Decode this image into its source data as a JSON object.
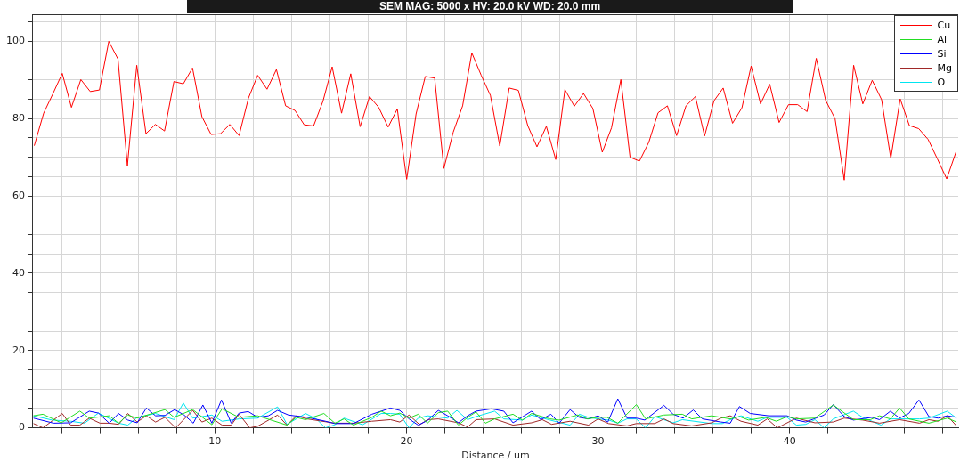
{
  "chart_data": {
    "type": "line",
    "xlabel": "Distance / um",
    "annotations": [
      "SEM MAG: 5000 x HV: 20.0 kV WD: 20.0 mm"
    ],
    "xlim": [
      0.5,
      48.8
    ],
    "ylim": [
      0,
      107
    ],
    "xticks": [
      {
        "value": 2,
        "label": null
      },
      {
        "value": 4,
        "label": null
      },
      {
        "value": 6,
        "label": null
      },
      {
        "value": 8,
        "label": null
      },
      10,
      {
        "value": 12,
        "label": null
      },
      {
        "value": 14,
        "label": null
      },
      {
        "value": 16,
        "label": null
      },
      {
        "value": 18,
        "label": null
      },
      20,
      {
        "value": 22,
        "label": null
      },
      {
        "value": 24,
        "label": null
      },
      {
        "value": 26,
        "label": null
      },
      {
        "value": 28,
        "label": null
      },
      30,
      {
        "value": 32,
        "label": null
      },
      {
        "value": 34,
        "label": null
      },
      {
        "value": 36,
        "label": null
      },
      {
        "value": 38,
        "label": null
      },
      40,
      {
        "value": 42,
        "label": null
      },
      {
        "value": 44,
        "label": null
      },
      {
        "value": 46,
        "label": null
      },
      {
        "value": 48,
        "label": null
      }
    ],
    "yticks": [
      0,
      {
        "value": 5,
        "label": null
      },
      {
        "value": 10,
        "label": null
      },
      {
        "value": 15,
        "label": null
      },
      20,
      {
        "value": 25,
        "label": null
      },
      {
        "value": 30,
        "label": null
      },
      {
        "value": 35,
        "label": null
      },
      40,
      {
        "value": 45,
        "label": null
      },
      {
        "value": 50,
        "label": null
      },
      {
        "value": 55,
        "label": null
      },
      60,
      {
        "value": 65,
        "label": null
      },
      {
        "value": 70,
        "label": null
      },
      {
        "value": 75,
        "label": null
      },
      80,
      {
        "value": 85,
        "label": null
      },
      {
        "value": 90,
        "label": null
      },
      {
        "value": 95,
        "label": null
      },
      100,
      {
        "value": 105,
        "label": null
      }
    ],
    "grid": true,
    "legend": "top right",
    "marker": "none",
    "series": [
      {
        "name": "Cu",
        "color": "#ff0000",
        "x": [
          0.57,
          1.06,
          1.54,
          2.03,
          2.51,
          3.0,
          3.49,
          3.97,
          4.46,
          4.94,
          5.43,
          5.92,
          6.4,
          6.89,
          7.37,
          7.86,
          8.35,
          8.83,
          9.32,
          9.8,
          10.29,
          10.78,
          11.26,
          11.75,
          12.23,
          12.72,
          13.21,
          13.69,
          14.18,
          14.66,
          15.15,
          15.64,
          16.12,
          16.61,
          17.09,
          17.58,
          18.07,
          18.55,
          19.04,
          19.52,
          20.01,
          20.5,
          20.98,
          21.47,
          21.95,
          22.44,
          22.93,
          23.41,
          23.9,
          24.38,
          24.87,
          25.36,
          25.84,
          26.33,
          26.81,
          27.3,
          27.79,
          28.27,
          28.76,
          29.24,
          29.73,
          30.22,
          30.7,
          31.19,
          31.67,
          32.16,
          32.65,
          33.13,
          33.62,
          34.1,
          34.59,
          35.08,
          35.56,
          36.05,
          36.53,
          37.02,
          37.51,
          37.99,
          38.48,
          38.96,
          39.45,
          39.94,
          40.42,
          40.91,
          41.39,
          41.88,
          42.37,
          42.85,
          43.34,
          43.82,
          44.31,
          44.8,
          45.28,
          45.77,
          46.25,
          46.74,
          47.23,
          47.71,
          48.2,
          48.68
        ],
        "values": [
          73.0,
          81.4,
          86.4,
          91.7,
          82.9,
          90.1,
          87.0,
          87.4,
          100.0,
          95.4,
          67.8,
          93.8,
          76.1,
          78.5,
          76.8,
          89.6,
          89.0,
          93.1,
          80.5,
          75.9,
          76.1,
          78.5,
          75.6,
          85.3,
          91.2,
          87.6,
          92.7,
          83.3,
          82.1,
          78.4,
          78.1,
          84.5,
          93.4,
          81.4,
          91.6,
          77.9,
          85.7,
          82.9,
          77.8,
          82.5,
          64.3,
          81.2,
          90.9,
          90.5,
          67.1,
          76.5,
          83.3,
          97.0,
          91.2,
          86.0,
          72.9,
          87.9,
          87.3,
          78.2,
          72.7,
          78.0,
          69.4,
          87.5,
          83.2,
          86.5,
          82.6,
          71.3,
          77.6,
          90.1,
          70.0,
          69.0,
          73.9,
          81.5,
          83.3,
          75.6,
          83.3,
          85.7,
          75.5,
          84.6,
          87.9,
          78.8,
          82.8,
          93.6,
          83.8,
          88.9,
          79.0,
          83.6,
          83.6,
          81.8,
          95.6,
          84.7,
          80.0,
          64.1,
          93.8,
          83.8,
          89.9,
          84.9,
          69.7,
          85.1,
          78.2,
          77.4,
          74.6,
          69.6,
          64.4,
          71.3
        ]
      },
      {
        "name": "Al",
        "color": "#22dd22",
        "x": [
          0.53,
          1.02,
          1.98,
          2.95,
          3.44,
          4.48,
          4.97,
          5.45,
          5.94,
          7.39,
          7.87,
          8.84,
          9.84,
          10.37,
          11.26,
          12.23,
          13.76,
          14.24,
          14.73,
          15.69,
          16.26,
          16.74,
          17.23,
          18.19,
          18.68,
          19.16,
          19.65,
          20.13,
          20.61,
          21.1,
          21.66,
          22.15,
          22.71,
          23.19,
          23.63,
          24.12,
          24.6,
          25.56,
          26.05,
          26.53,
          27.49,
          27.97,
          28.94,
          29.42,
          30.0,
          30.47,
          31.03,
          32.0,
          32.48,
          33.44,
          34.4,
          34.89,
          35.93,
          36.9,
          37.38,
          37.86,
          38.75,
          39.31,
          39.87,
          40.35,
          41.32,
          42.28,
          43.33,
          44.21,
          44.69,
          45.26,
          45.74,
          46.22,
          47.27,
          48.23,
          48.71
        ],
        "values": [
          3.1,
          3.5,
          1.3,
          4.3,
          2.5,
          3.1,
          1.2,
          3.3,
          2.5,
          4.7,
          2.7,
          4.7,
          0.8,
          4.9,
          2.7,
          3.1,
          0.7,
          2.7,
          2.1,
          3.7,
          1.2,
          2.3,
          0.7,
          2.7,
          4.3,
          3.1,
          3.8,
          2.5,
          3.5,
          1.2,
          3.9,
          4.3,
          0.7,
          2.7,
          4.1,
          1.2,
          2.3,
          3.5,
          2.0,
          3.7,
          2.3,
          2.0,
          3.3,
          2.3,
          2.7,
          2.7,
          1.2,
          6.0,
          2.3,
          3.3,
          3.5,
          2.3,
          3.1,
          2.3,
          2.9,
          2.0,
          2.7,
          1.7,
          2.9,
          2.3,
          2.5,
          5.9,
          2.1,
          2.1,
          3.1,
          2.3,
          5.1,
          2.3,
          1.2,
          2.5,
          1.5
        ]
      },
      {
        "name": "Si",
        "color": "#0000ff",
        "x": [
          0.53,
          1.58,
          2.47,
          3.44,
          3.92,
          4.48,
          4.97,
          5.45,
          5.94,
          6.42,
          6.9,
          7.39,
          7.9,
          8.39,
          8.87,
          9.37,
          9.84,
          10.34,
          10.85,
          11.26,
          11.74,
          12.23,
          12.79,
          13.27,
          13.84,
          14.81,
          15.77,
          16.26,
          17.23,
          18.19,
          19.16,
          19.65,
          20.13,
          20.61,
          21.1,
          21.66,
          22.15,
          22.71,
          23.19,
          23.63,
          24.44,
          25.08,
          25.56,
          26.53,
          27.01,
          27.54,
          27.97,
          28.54,
          29.02,
          29.5,
          30.0,
          30.51,
          31.03,
          31.51,
          31.99,
          32.44,
          33.44,
          33.92,
          34.44,
          34.97,
          35.45,
          36.41,
          36.9,
          37.38,
          37.94,
          38.91,
          39.87,
          40.35,
          40.84,
          41.8,
          42.28,
          42.85,
          43.33,
          44.29,
          44.69,
          45.26,
          45.74,
          46.22,
          46.75,
          47.27,
          47.75,
          48.23,
          48.71
        ],
        "values": [
          2.5,
          1.2,
          1.3,
          4.3,
          3.8,
          1.2,
          3.7,
          2.0,
          1.3,
          5.1,
          3.1,
          3.2,
          4.7,
          3.3,
          1.2,
          5.9,
          1.2,
          7.2,
          1.2,
          3.8,
          4.2,
          2.7,
          3.1,
          4.5,
          3.3,
          2.7,
          1.7,
          1.1,
          1.1,
          3.5,
          5.1,
          4.5,
          2.3,
          0.7,
          1.9,
          4.5,
          3.1,
          1.3,
          3.1,
          4.3,
          4.9,
          4.3,
          1.3,
          4.3,
          2.1,
          3.5,
          1.2,
          4.7,
          2.7,
          2.3,
          3.1,
          1.5,
          7.5,
          2.5,
          2.5,
          2.0,
          5.8,
          3.5,
          2.5,
          4.6,
          2.3,
          1.5,
          1.2,
          5.5,
          3.7,
          3.1,
          3.1,
          2.0,
          1.5,
          3.3,
          6.0,
          2.9,
          2.0,
          2.7,
          2.1,
          4.3,
          2.5,
          3.7,
          7.2,
          2.9,
          2.5,
          3.1,
          2.7
        ]
      },
      {
        "name": "Mg",
        "color": "#a02828",
        "x": [
          0.53,
          1.02,
          2.03,
          2.47,
          2.95,
          3.44,
          4.0,
          4.48,
          4.97,
          5.45,
          5.94,
          6.42,
          6.9,
          7.39,
          7.95,
          8.84,
          9.32,
          9.84,
          10.37,
          10.85,
          11.26,
          11.82,
          12.23,
          13.27,
          13.76,
          14.24,
          14.81,
          16.26,
          17.23,
          18.19,
          19.16,
          19.65,
          20.13,
          20.69,
          21.1,
          21.66,
          22.71,
          23.19,
          23.63,
          24.6,
          25.56,
          26.53,
          27.09,
          27.57,
          28.54,
          29.5,
          30.0,
          30.55,
          31.51,
          31.99,
          32.96,
          33.44,
          33.92,
          34.89,
          35.93,
          36.41,
          36.9,
          37.46,
          38.34,
          38.83,
          39.36,
          40.35,
          41.32,
          42.28,
          42.85,
          43.81,
          44.69,
          45.74,
          46.78,
          47.27,
          47.75,
          48.23,
          48.71
        ],
        "values": [
          1.1,
          0.0,
          3.7,
          0.7,
          0.7,
          2.5,
          1.2,
          1.2,
          0.9,
          3.7,
          1.5,
          3.1,
          1.5,
          2.7,
          0.0,
          4.5,
          1.5,
          2.5,
          0.7,
          0.7,
          3.5,
          0.0,
          0.4,
          3.3,
          0.7,
          3.1,
          2.3,
          1.2,
          1.2,
          1.7,
          2.1,
          1.5,
          3.3,
          0.8,
          2.1,
          2.3,
          1.3,
          0.2,
          2.1,
          2.3,
          0.7,
          1.3,
          2.1,
          0.9,
          1.7,
          0.7,
          2.3,
          1.1,
          0.5,
          1.1,
          1.1,
          2.3,
          1.1,
          0.5,
          1.3,
          2.5,
          3.1,
          1.7,
          0.7,
          2.3,
          0.0,
          2.5,
          1.3,
          1.5,
          2.5,
          2.0,
          1.2,
          2.1,
          1.2,
          2.1,
          1.7,
          3.1,
          0.5
        ]
      },
      {
        "name": "O",
        "color": "#00e5f0",
        "x": [
          0.53,
          1.5,
          2.47,
          3.19,
          3.92,
          4.97,
          5.45,
          5.94,
          6.9,
          7.87,
          8.35,
          8.84,
          9.84,
          10.37,
          11.26,
          12.23,
          13.27,
          13.76,
          14.73,
          15.29,
          15.77,
          16.26,
          16.74,
          17.71,
          18.68,
          19.16,
          19.65,
          20.13,
          20.61,
          21.1,
          22.15,
          22.63,
          23.19,
          23.63,
          24.6,
          25.08,
          26.05,
          26.53,
          27.49,
          28.54,
          29.02,
          29.5,
          30.0,
          30.55,
          31.03,
          31.51,
          31.99,
          32.48,
          32.96,
          33.92,
          34.4,
          35.93,
          36.49,
          36.9,
          37.46,
          38.34,
          38.83,
          39.87,
          40.35,
          40.84,
          41.32,
          41.8,
          42.28,
          43.33,
          43.81,
          44.77,
          45.26,
          45.74,
          46.78,
          47.27,
          48.23,
          48.71
        ],
        "values": [
          3.1,
          2.0,
          1.7,
          1.2,
          3.8,
          1.2,
          0.7,
          2.7,
          3.7,
          2.1,
          6.4,
          2.5,
          3.3,
          1.7,
          2.3,
          2.5,
          5.4,
          0.9,
          3.7,
          2.3,
          0.0,
          0.8,
          2.5,
          0.8,
          3.7,
          3.7,
          3.5,
          0.0,
          2.5,
          3.1,
          2.5,
          4.5,
          2.1,
          2.9,
          4.3,
          2.3,
          2.0,
          3.3,
          2.0,
          0.7,
          3.5,
          2.7,
          2.3,
          2.0,
          1.2,
          2.3,
          2.3,
          0.0,
          2.9,
          1.3,
          2.1,
          1.1,
          1.1,
          2.1,
          3.1,
          1.7,
          2.7,
          2.7,
          0.7,
          0.9,
          2.1,
          0.0,
          2.3,
          4.3,
          2.7,
          0.7,
          2.3,
          2.3,
          2.3,
          2.5,
          4.3,
          2.5
        ]
      }
    ]
  }
}
